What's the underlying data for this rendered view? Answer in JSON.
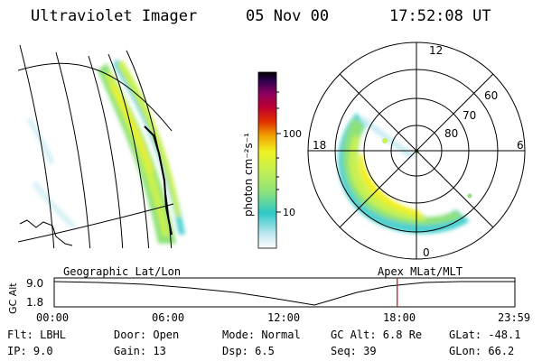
{
  "header": {
    "instrument": "Ultraviolet Imager",
    "date": "05 Nov 00",
    "time": "17:52:08 UT"
  },
  "colorbar": {
    "label": "photon cm⁻²s⁻¹",
    "ticks": [
      "100",
      "10"
    ],
    "colors": [
      "#ffffff",
      "#bfe8f0",
      "#2ec8c8",
      "#8de27a",
      "#c8f050",
      "#f0f020",
      "#f0a000",
      "#e03000",
      "#c00030",
      "#8a0060",
      "#300050",
      "#000000"
    ]
  },
  "left_panel": {
    "label": "Geographic Lat/Lon"
  },
  "right_panel": {
    "label": "Apex MLat/MLT",
    "mlt_labels": {
      "top": "12",
      "left": "18",
      "right": "6",
      "bottom": "0"
    },
    "lat_labels": [
      "60",
      "70",
      "80"
    ]
  },
  "altitude_plot": {
    "ylabel": "GC Alt",
    "yticks": [
      "9.0",
      "1.8"
    ],
    "xticks": [
      "00:00",
      "06:00",
      "12:00",
      "18:00",
      "23:59"
    ],
    "current_time_hours": 17.87,
    "marker_color": "#e00000"
  },
  "info": {
    "filter": "Flt: LBHL",
    "door": "Door: Open",
    "mode": "Mode: Normal",
    "gc_alt": "GC Alt: 6.8 Re",
    "glat": "GLat: -48.1",
    "ip": "IP: 9.0",
    "gain": "Gain: 13",
    "dsp": "Dsp:    6.5",
    "seq": "Seq: 39",
    "glon": "GLon: 66.2"
  }
}
